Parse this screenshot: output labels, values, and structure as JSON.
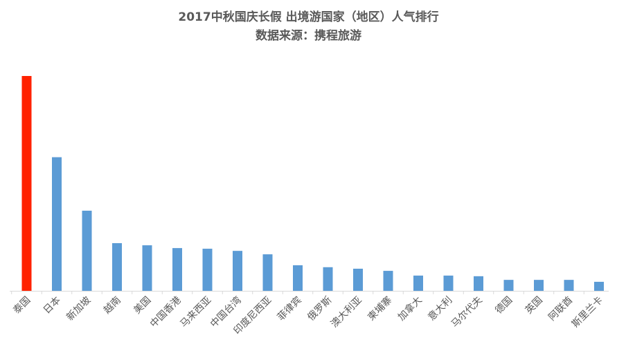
{
  "chart_data": {
    "type": "bar",
    "title": "2017中秋国庆长假 出境游国家（地区）人气排行",
    "subtitle": "数据来源：携程旅游",
    "categories": [
      "泰国",
      "日本",
      "新加坡",
      "越南",
      "美国",
      "中国香港",
      "马来西亚",
      "中国台湾",
      "印度尼西亚",
      "菲律宾",
      "俄罗斯",
      "澳大利亚",
      "柬埔寨",
      "加拿大",
      "意大利",
      "马尔代夫",
      "德国",
      "英国",
      "阿联酋",
      "斯里兰卡"
    ],
    "values": [
      100,
      62.2,
      37.3,
      22.2,
      21.2,
      19.9,
      19.6,
      18.6,
      17.0,
      11.9,
      11.0,
      10.3,
      9.3,
      7.1,
      7.1,
      6.8,
      5.1,
      5.1,
      5.1,
      4.2
    ],
    "ylim": [
      0,
      100
    ],
    "highlight_color": "#FF2200",
    "bar_color": "#5B9BD5",
    "grid": false,
    "legend": "none"
  }
}
